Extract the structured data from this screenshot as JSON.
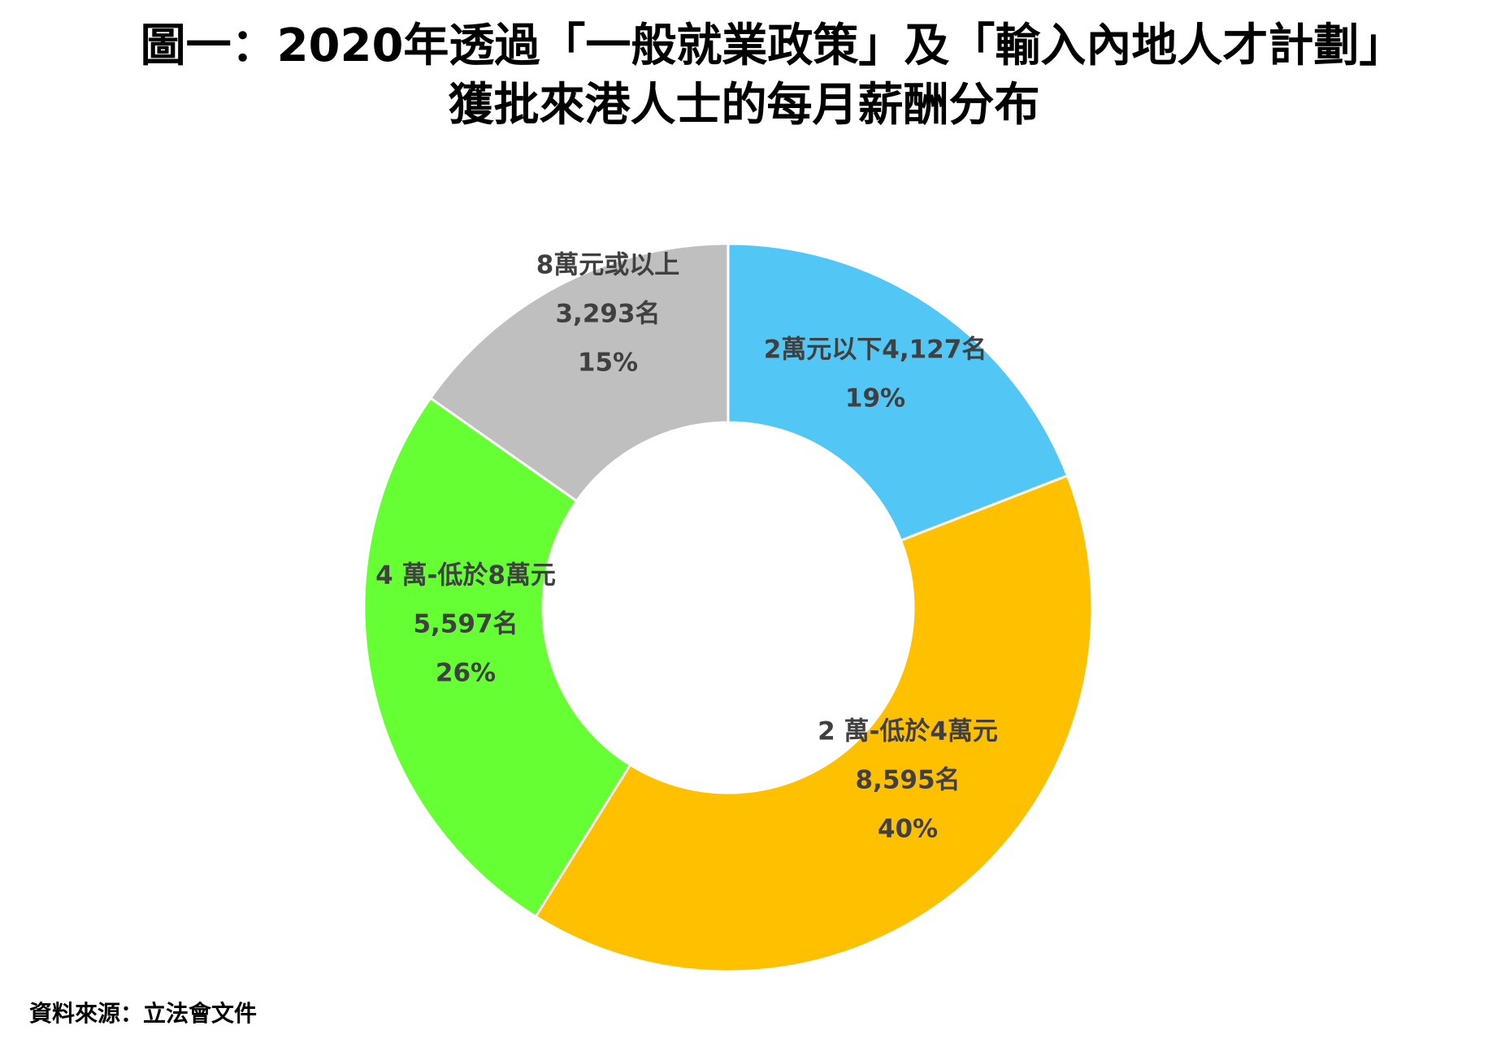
{
  "chart_data": {
    "type": "pie",
    "title_line_1": "圖一：2020年透過「一般就業政策」及「輸入內地人才計劃」",
    "title_line_2": "獲批來港人士的每月薪酬分布",
    "source": "資料來源：立法會文件",
    "slices": [
      {
        "label": "2萬元以下",
        "count": 4127,
        "count_text": "4,127名",
        "percent": 19,
        "percent_text": "19%",
        "color": "#52C7F5"
      },
      {
        "label": "2 萬-低於4萬元",
        "count": 8595,
        "count_text": "8,595名",
        "percent": 40,
        "percent_text": "40%",
        "color": "#FFC000"
      },
      {
        "label": "4 萬-低於8萬元",
        "count": 5597,
        "count_text": "5,597名",
        "percent": 26,
        "percent_text": "26%",
        "color": "#66FF33"
      },
      {
        "label": "8萬元或以上",
        "count": 3293,
        "count_text": "3,293名",
        "percent": 15,
        "percent_text": "15%",
        "color": "#BFBFBF"
      }
    ],
    "label_text_color": "#404040",
    "legend": "none"
  }
}
